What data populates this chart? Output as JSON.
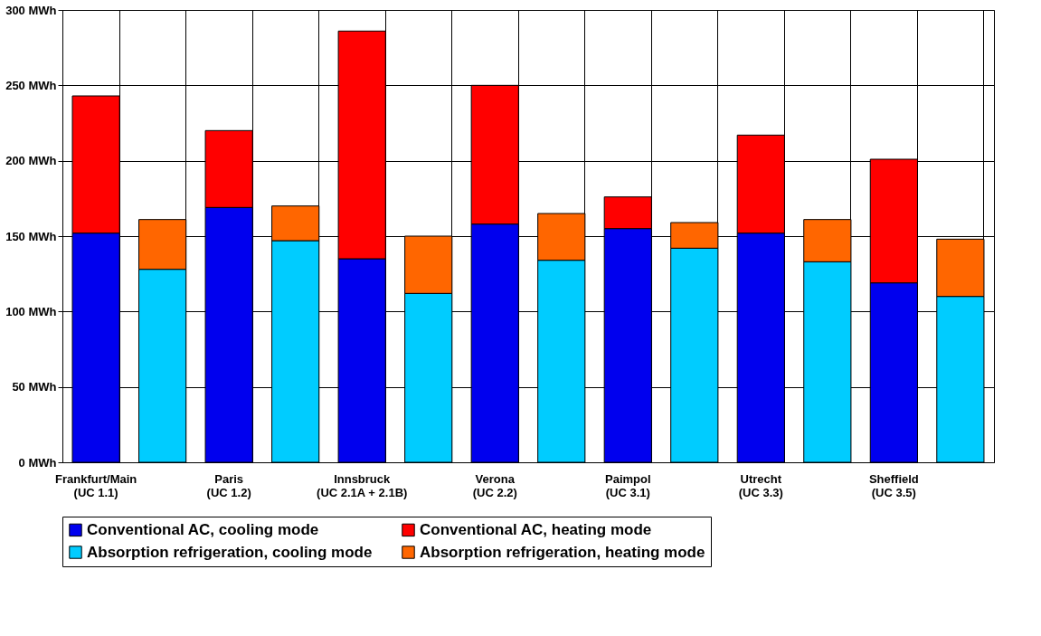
{
  "chart_data": {
    "type": "bar",
    "stacked": true,
    "grid": true,
    "legend": "bottom",
    "categories": [
      "Frankfurt/Main\n(UC 1.1)",
      null,
      "Paris\n(UC 1.2)",
      null,
      "Innsbruck\n(UC 2.1A + 2.1B)",
      null,
      "Verona\n(UC 2.2)",
      null,
      "Paimpol\n(UC 3.1)",
      null,
      "Utrecht\n(UC 3.3)",
      null,
      "Sheffield\n(UC 3.5)",
      null
    ],
    "series": [
      {
        "name": "Conventional AC, cooling mode",
        "color": "#0000ee",
        "values": [
          152,
          null,
          169,
          null,
          135,
          null,
          158,
          null,
          155,
          null,
          152,
          null,
          119,
          null
        ]
      },
      {
        "name": "Conventional AC, heating mode",
        "color": "#ff0000",
        "values": [
          91,
          null,
          51,
          null,
          151,
          null,
          92,
          null,
          21,
          null,
          65,
          null,
          82,
          null
        ]
      },
      {
        "name": "Absorption refrigeration, cooling mode",
        "color": "#00ccff",
        "values": [
          null,
          128,
          null,
          147,
          null,
          112,
          null,
          134,
          null,
          142,
          null,
          133,
          null,
          110
        ]
      },
      {
        "name": "Absorption refrigeration, heating mode",
        "color": "#ff6600",
        "values": [
          null,
          33,
          null,
          23,
          null,
          38,
          null,
          31,
          null,
          17,
          null,
          28,
          null,
          38
        ]
      }
    ],
    "ylim": [
      0,
      300
    ],
    "yticks": [
      {
        "value": 0,
        "label": "0 MWh"
      },
      {
        "value": 50,
        "label": "50 MWh"
      },
      {
        "value": 100,
        "label": "100 MWh"
      },
      {
        "value": 150,
        "label": "150 MWh"
      },
      {
        "value": 200,
        "label": "200 MWh"
      },
      {
        "value": 250,
        "label": "250 MWh"
      },
      {
        "value": 300,
        "label": "300 MWh"
      }
    ]
  }
}
